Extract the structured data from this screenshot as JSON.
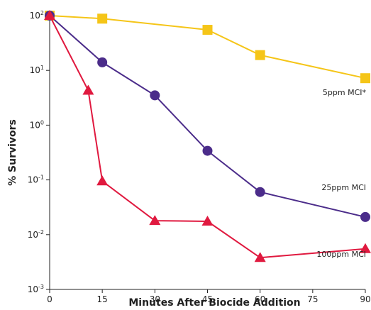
{
  "chart_data": {
    "type": "line",
    "title": "",
    "xlabel": "Minutes After Biocide Addition",
    "ylabel": "% Survivors",
    "xlim": [
      0,
      90
    ],
    "ylim": [
      0.001,
      100
    ],
    "yscale": "log",
    "grid": false,
    "x_ticks": [
      {
        "value": 0,
        "label": "0"
      },
      {
        "value": 15,
        "label": "15"
      },
      {
        "value": 30,
        "label": "30"
      },
      {
        "value": 45,
        "label": "45"
      },
      {
        "value": 60,
        "label": "60"
      },
      {
        "value": 75,
        "label": "75"
      },
      {
        "value": 90,
        "label": "90"
      }
    ],
    "y_ticks": [
      {
        "value": 100,
        "base": "10",
        "exp": "2"
      },
      {
        "value": 10,
        "base": "10",
        "exp": "1"
      },
      {
        "value": 1,
        "base": "10",
        "exp": "0"
      },
      {
        "value": 0.1,
        "base": "10",
        "exp": "-1"
      },
      {
        "value": 0.01,
        "base": "10",
        "exp": "-2"
      },
      {
        "value": 0.001,
        "base": "10",
        "exp": "-3"
      }
    ],
    "series": [
      {
        "name": "5ppm MCI*",
        "color": "#F5C518",
        "marker": "square",
        "x": [
          0,
          15,
          45,
          60,
          90
        ],
        "y": [
          100,
          88,
          55,
          19,
          7.2
        ]
      },
      {
        "name": "25ppm MCI",
        "color": "#4B2C8A",
        "marker": "circle",
        "x": [
          0,
          15,
          30,
          45,
          60,
          90
        ],
        "y": [
          100,
          14,
          3.5,
          0.34,
          0.06,
          0.021
        ]
      },
      {
        "name": "100ppm MCI",
        "color": "#E0193F",
        "marker": "triangle",
        "x": [
          0,
          11,
          15,
          30,
          45,
          60,
          90
        ],
        "y": [
          100,
          4.3,
          0.095,
          0.018,
          0.0175,
          0.0038,
          0.0055
        ]
      }
    ]
  }
}
